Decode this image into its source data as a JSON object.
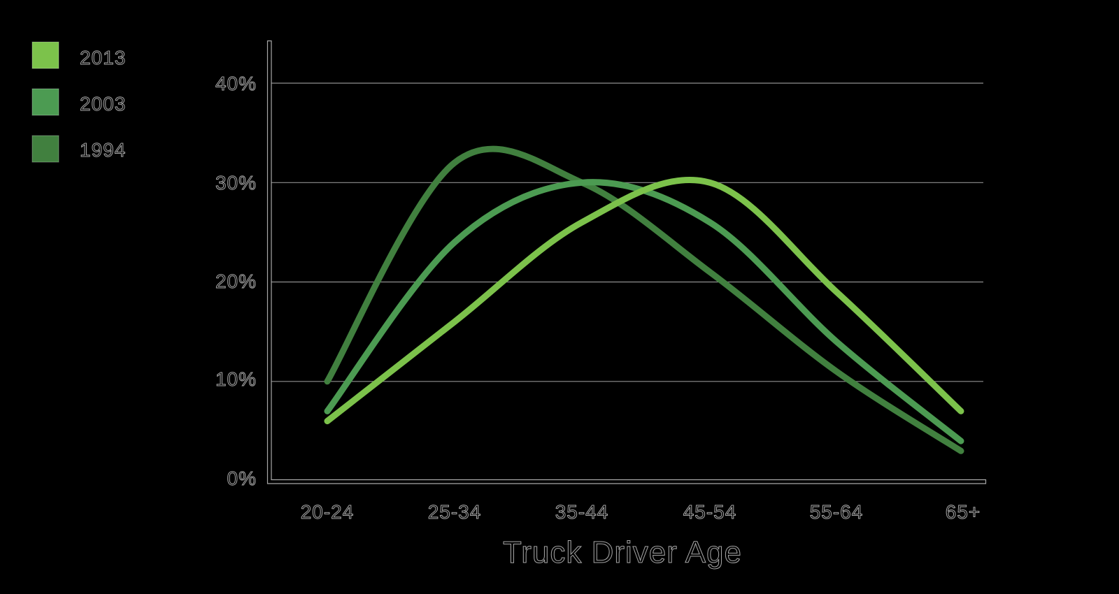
{
  "chart_data": {
    "type": "line",
    "title": "",
    "xlabel": "Truck Driver Age",
    "ylabel": "",
    "unit": "%",
    "categories": [
      "20-24",
      "25-34",
      "35-44",
      "45-54",
      "55-64",
      "65+"
    ],
    "y_tick_labels": [
      "0%",
      "10%",
      "20%",
      "30%",
      "40%"
    ],
    "ylim": [
      0,
      40
    ],
    "grid": "horizontal-only",
    "legend_position": "top-left",
    "series": [
      {
        "name": "2013",
        "color": "#7CC24B",
        "values": [
          6,
          16,
          26,
          30,
          19,
          7
        ]
      },
      {
        "name": "2003",
        "color": "#4C9B52",
        "values": [
          7,
          24,
          30,
          26,
          14,
          4
        ]
      },
      {
        "name": "1994",
        "color": "#41803F",
        "values": [
          10,
          32,
          30,
          21,
          11,
          3
        ]
      }
    ]
  },
  "style": {
    "background": "#000000",
    "gridline_color": "#8f8f8f",
    "axis_outline_color": "#a8a8a8",
    "text_outline_color": "#a8a8a8",
    "curve_stroke_width": 9
  }
}
